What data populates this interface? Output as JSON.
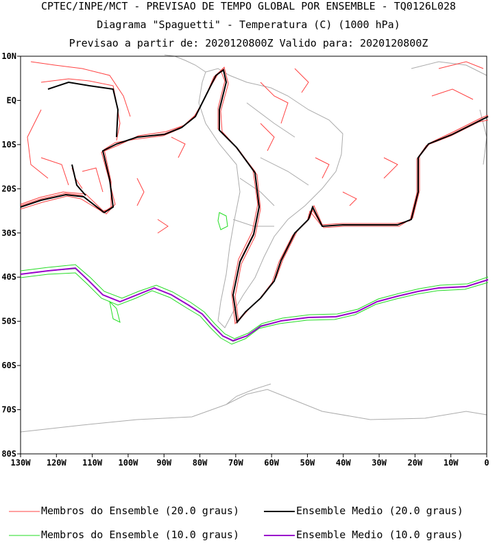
{
  "header": {
    "line1": "CPTEC/INPE/MCT - PREVISAO DE TEMPO GLOBAL POR ENSEMBLE - TQ0126L028",
    "line2": "Diagrama \"Spaguetti\" - Temperatura (C) (1000 hPa)",
    "line3": "Previsao a partir de: 2020120800Z  Valido para: 2020120800Z"
  },
  "map": {
    "region": "South America and adjacent oceans",
    "lon_range": [
      -130,
      0
    ],
    "lat_range": [
      -80,
      10
    ],
    "lat_labels": [
      "10N",
      "EQ",
      "10S",
      "20S",
      "30S",
      "40S",
      "50S",
      "60S",
      "70S",
      "80S"
    ],
    "lon_labels": [
      "130W",
      "120W",
      "110W",
      "100W",
      "90W",
      "80W",
      "70W",
      "60W",
      "50W",
      "40W",
      "30W",
      "20W",
      "10W",
      "0"
    ],
    "colors": {
      "member_20": "#ff4040",
      "mean_20": "#000000",
      "member_10": "#22dd22",
      "mean_10": "#9900cc",
      "coast": "#aaaaaa"
    }
  },
  "legend": {
    "members_20": "Membros do Ensemble (20.0 graus)",
    "mean_20": "Ensemble Medio (20.0 graus)",
    "members_10": "Membros do Ensemble (10.0 graus)",
    "mean_10": "Ensemble Medio (10.0 graus)"
  }
}
